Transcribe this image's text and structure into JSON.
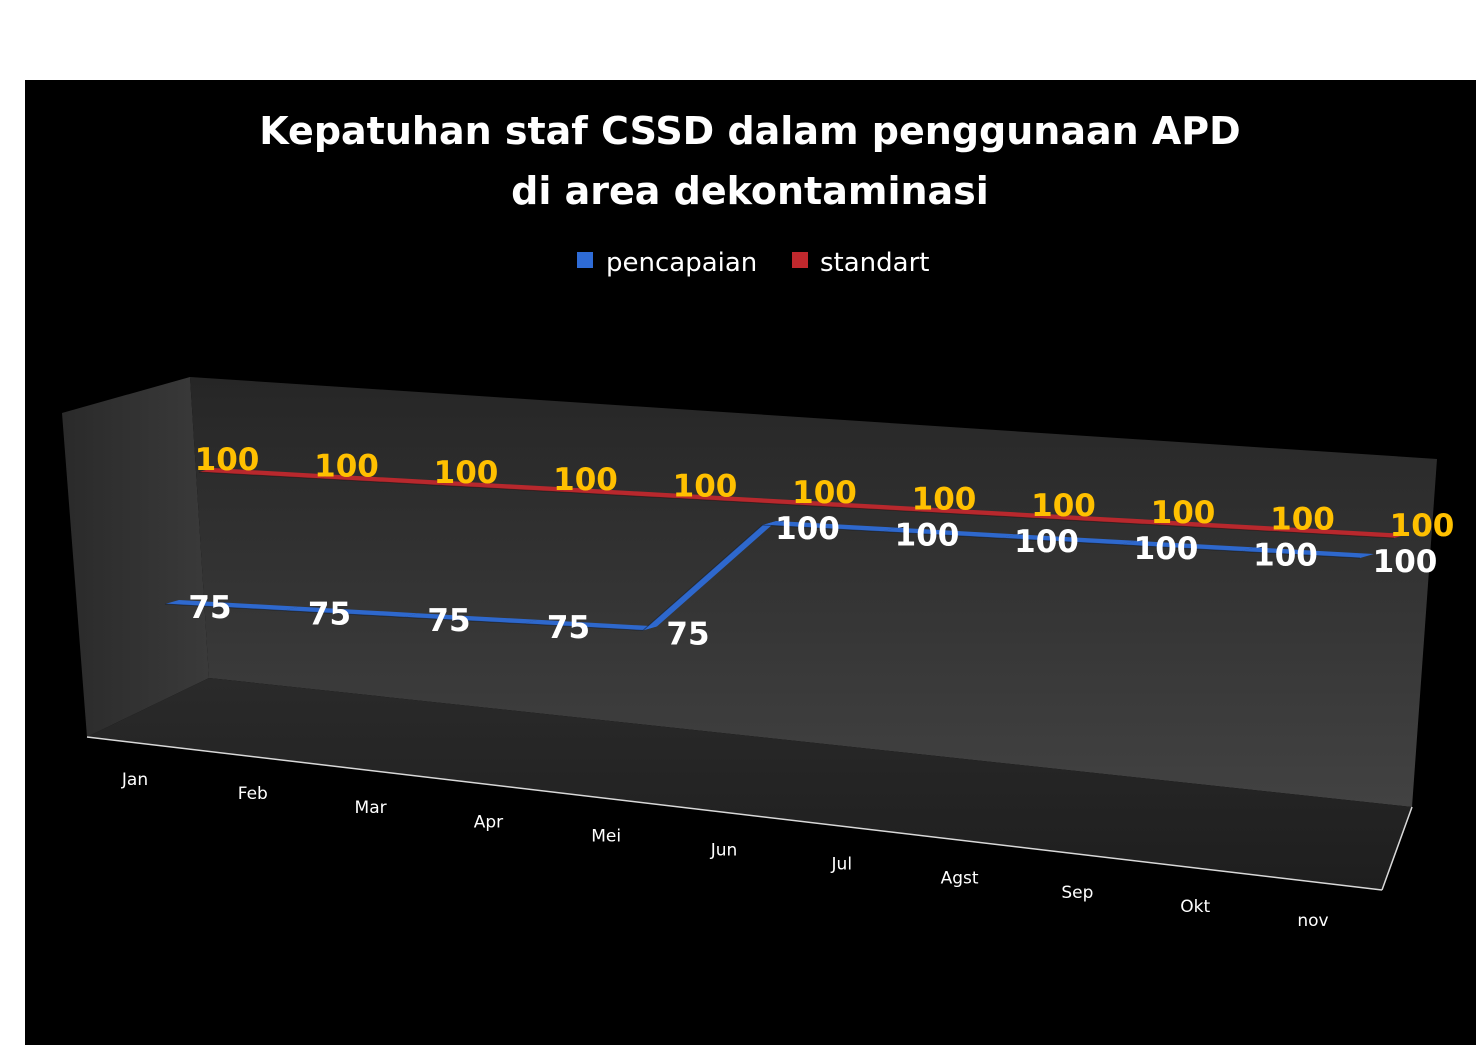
{
  "chart_data": {
    "type": "line",
    "title_lines": [
      "Kepatuhan staf CSSD dalam penggunaan APD",
      "di area dekontaminasi"
    ],
    "categories": [
      "Jan",
      "Feb",
      "Mar",
      "Apr",
      "Mei",
      "Jun",
      "Jul",
      "Agst",
      "Sep",
      "Okt",
      "nov"
    ],
    "series": [
      {
        "name": "pencapaian",
        "color": "#2e6bd6",
        "values": [
          75,
          75,
          75,
          75,
          75,
          100,
          100,
          100,
          100,
          100,
          100
        ]
      },
      {
        "name": "standart",
        "color": "#c0282d",
        "values": [
          100,
          100,
          100,
          100,
          100,
          100,
          100,
          100,
          100,
          100,
          100
        ]
      }
    ],
    "data_label_colors": {
      "pencapaian": "#ffffff",
      "standart": "#ffc000"
    },
    "legend": "top",
    "style": "3d-line",
    "grid": false,
    "axis_visible": false
  }
}
